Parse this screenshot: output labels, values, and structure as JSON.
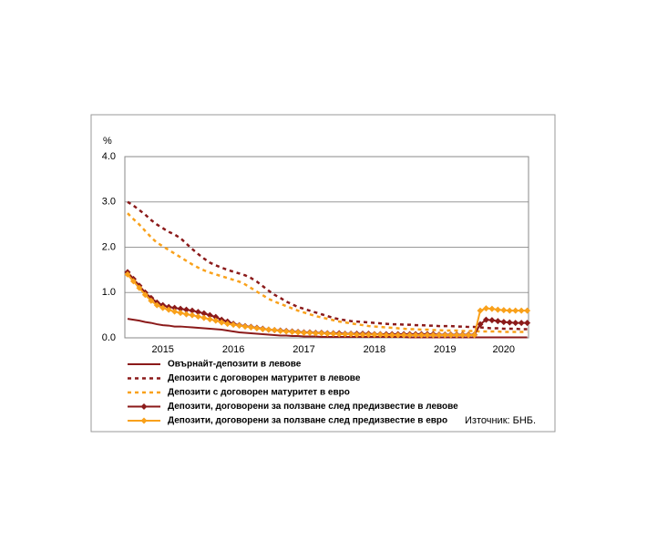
{
  "chart_data": {
    "type": "line",
    "y_axis_label": "%",
    "source": "Източник: БНБ.",
    "categories": [
      null,
      null,
      null,
      null,
      null,
      null,
      "2015",
      null,
      null,
      null,
      null,
      null,
      null,
      null,
      null,
      null,
      null,
      null,
      "2016",
      null,
      null,
      null,
      null,
      null,
      null,
      null,
      null,
      null,
      null,
      null,
      "2017",
      null,
      null,
      null,
      null,
      null,
      null,
      null,
      null,
      null,
      null,
      null,
      "2018",
      null,
      null,
      null,
      null,
      null,
      null,
      null,
      null,
      null,
      null,
      null,
      "2019",
      null,
      null,
      null,
      null,
      null,
      null,
      null,
      null,
      null,
      "2020",
      null,
      null,
      null,
      null
    ],
    "ylim": [
      0,
      4
    ],
    "yticks": [
      {
        "value": 0,
        "label": "0.0"
      },
      {
        "value": 1,
        "label": "1.0"
      },
      {
        "value": 2,
        "label": "2.0"
      },
      {
        "value": 3,
        "label": "3.0"
      },
      {
        "value": 4,
        "label": "4.0"
      }
    ],
    "grid": true,
    "series": [
      {
        "name": "Овърнайт-депозити в левове",
        "color": "#8b1a1a",
        "style": "solid",
        "marker": "none",
        "values": [
          0.42,
          0.4,
          0.38,
          0.35,
          0.33,
          0.3,
          0.28,
          0.27,
          0.25,
          0.25,
          0.24,
          0.23,
          0.22,
          0.21,
          0.2,
          0.19,
          0.18,
          0.16,
          0.14,
          0.12,
          0.11,
          0.1,
          0.09,
          0.08,
          0.07,
          0.06,
          0.05,
          0.05,
          0.04,
          0.04,
          0.03,
          0.03,
          0.03,
          0.02,
          0.02,
          0.02,
          0.02,
          0.02,
          0.02,
          0.02,
          0.02,
          0.02,
          0.02,
          0.02,
          0.02,
          0.02,
          0.02,
          0.02,
          0.01,
          0.01,
          0.01,
          0.01,
          0.01,
          0.01,
          0.01,
          0.01,
          0.01,
          0.01,
          0.01,
          0.01,
          0.01,
          0.01,
          0.01,
          0.01,
          0.01,
          0.01,
          0.01,
          0.01,
          0.01
        ]
      },
      {
        "name": "Депозити с договорен матуритет в левове",
        "color": "#8b1a1a",
        "style": "dashed",
        "marker": "none",
        "values": [
          3.0,
          2.92,
          2.82,
          2.72,
          2.6,
          2.5,
          2.42,
          2.34,
          2.28,
          2.2,
          2.08,
          1.96,
          1.85,
          1.75,
          1.66,
          1.6,
          1.55,
          1.5,
          1.46,
          1.42,
          1.38,
          1.32,
          1.24,
          1.14,
          1.04,
          0.95,
          0.88,
          0.8,
          0.74,
          0.68,
          0.64,
          0.6,
          0.56,
          0.52,
          0.48,
          0.44,
          0.41,
          0.39,
          0.37,
          0.36,
          0.35,
          0.34,
          0.33,
          0.32,
          0.31,
          0.3,
          0.3,
          0.29,
          0.29,
          0.28,
          0.28,
          0.27,
          0.27,
          0.26,
          0.26,
          0.26,
          0.25,
          0.25,
          0.24,
          0.24,
          0.23,
          0.22,
          0.21,
          0.21,
          0.2,
          0.2,
          0.2,
          0.19,
          0.19
        ]
      },
      {
        "name": "Депозити с договорен матуритет в евро",
        "color": "#f9a11b",
        "style": "dashed",
        "marker": "none",
        "values": [
          2.75,
          2.62,
          2.5,
          2.36,
          2.22,
          2.1,
          2.02,
          1.94,
          1.86,
          1.78,
          1.7,
          1.62,
          1.55,
          1.49,
          1.44,
          1.4,
          1.36,
          1.32,
          1.28,
          1.24,
          1.18,
          1.1,
          1.02,
          0.94,
          0.86,
          0.8,
          0.75,
          0.7,
          0.65,
          0.6,
          0.56,
          0.52,
          0.48,
          0.45,
          0.42,
          0.39,
          0.36,
          0.34,
          0.32,
          0.3,
          0.28,
          0.26,
          0.25,
          0.24,
          0.23,
          0.22,
          0.21,
          0.2,
          0.19,
          0.19,
          0.18,
          0.18,
          0.17,
          0.17,
          0.16,
          0.16,
          0.16,
          0.15,
          0.15,
          0.15,
          0.14,
          0.14,
          0.14,
          0.14,
          0.13,
          0.13,
          0.13,
          0.13,
          0.13
        ]
      },
      {
        "name": "Депозити, договорени за ползване след предизвестие в левове",
        "color": "#8b1a1a",
        "style": "solid",
        "marker": "diamond",
        "values": [
          1.45,
          1.3,
          1.15,
          1.0,
          0.88,
          0.78,
          0.72,
          0.68,
          0.66,
          0.64,
          0.62,
          0.6,
          0.57,
          0.54,
          0.5,
          0.46,
          0.4,
          0.36,
          0.31,
          0.28,
          0.26,
          0.24,
          0.22,
          0.2,
          0.18,
          0.17,
          0.16,
          0.15,
          0.14,
          0.13,
          0.12,
          0.12,
          0.11,
          0.11,
          0.1,
          0.1,
          0.1,
          0.09,
          0.09,
          0.09,
          0.09,
          0.09,
          0.08,
          0.08,
          0.08,
          0.08,
          0.08,
          0.08,
          0.08,
          0.08,
          0.08,
          0.08,
          0.08,
          0.07,
          0.07,
          0.07,
          0.07,
          0.07,
          0.07,
          0.07,
          0.3,
          0.4,
          0.39,
          0.37,
          0.35,
          0.34,
          0.33,
          0.33,
          0.33
        ]
      },
      {
        "name": "Депозити, договорени за ползване след предизвестие в евро",
        "color": "#f9a11b",
        "style": "solid",
        "marker": "diamond",
        "values": [
          1.4,
          1.25,
          1.1,
          0.95,
          0.82,
          0.72,
          0.66,
          0.62,
          0.58,
          0.55,
          0.52,
          0.5,
          0.47,
          0.44,
          0.41,
          0.38,
          0.34,
          0.31,
          0.29,
          0.27,
          0.25,
          0.23,
          0.21,
          0.19,
          0.18,
          0.17,
          0.15,
          0.14,
          0.13,
          0.12,
          0.11,
          0.11,
          0.1,
          0.1,
          0.09,
          0.09,
          0.08,
          0.08,
          0.08,
          0.07,
          0.07,
          0.07,
          0.07,
          0.07,
          0.06,
          0.06,
          0.06,
          0.06,
          0.06,
          0.06,
          0.06,
          0.06,
          0.06,
          0.06,
          0.06,
          0.06,
          0.06,
          0.06,
          0.06,
          0.06,
          0.6,
          0.65,
          0.64,
          0.62,
          0.61,
          0.6,
          0.6,
          0.6,
          0.6
        ]
      }
    ]
  }
}
